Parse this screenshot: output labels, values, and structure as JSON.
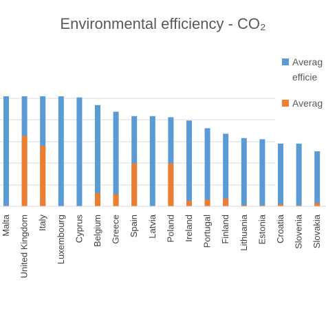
{
  "chart_data": {
    "type": "bar",
    "title": "Environmental efficiency - CO₂",
    "categories": [
      "Malta",
      "United Kingdom",
      "Italy",
      "Luxembourg",
      "Cyprus",
      "Belgium",
      "Greece",
      "Spain",
      "Latvia",
      "Poland",
      "Ireland",
      "Portugal",
      "Finland",
      "Lithuania",
      "Estonia",
      "Croatia",
      "Slovenia",
      "Slovakia"
    ],
    "series": [
      {
        "name": "Averag… efficie…",
        "color": "#5B9BD5",
        "values": [
          1.0,
          1.0,
          1.0,
          1.0,
          0.99,
          0.92,
          0.86,
          0.82,
          0.82,
          0.81,
          0.78,
          0.71,
          0.66,
          0.62,
          0.61,
          0.57,
          0.57,
          0.5
        ]
      },
      {
        "name": "Averag…",
        "color": "#ED7D31",
        "values": [
          0.0,
          0.64,
          0.55,
          0.0,
          0.0,
          0.12,
          0.11,
          0.39,
          0.0,
          0.39,
          0.05,
          0.06,
          0.07,
          0.01,
          0.01,
          0.02,
          0.01,
          0.03
        ]
      }
    ],
    "grid": true,
    "legend_position": "right"
  },
  "legend": {
    "item1_line1": "Averag",
    "item1_line2": "efficie",
    "item2_line1": "Averag"
  }
}
